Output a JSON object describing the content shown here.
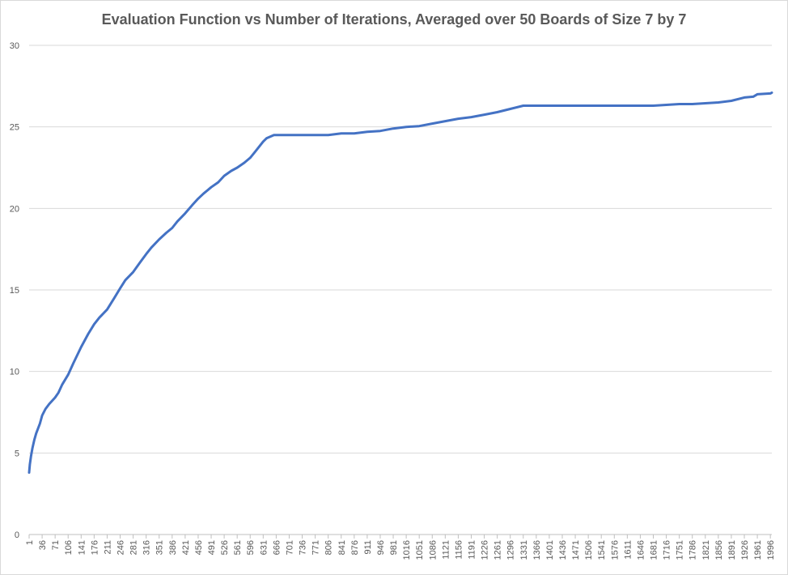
{
  "chart_data": {
    "type": "line",
    "title": "Evaluation Function vs Number of Iterations, Averaged over 50 Boards of Size 7 by 7",
    "xlabel": "",
    "ylabel": "",
    "ylim": [
      0,
      30
    ],
    "yticks": [
      0,
      5,
      10,
      15,
      20,
      25,
      30
    ],
    "xlim": [
      1,
      2000
    ],
    "xticks": [
      1,
      36,
      71,
      106,
      141,
      176,
      211,
      246,
      281,
      316,
      351,
      386,
      421,
      456,
      491,
      526,
      561,
      596,
      631,
      666,
      701,
      736,
      771,
      806,
      841,
      876,
      911,
      946,
      981,
      1016,
      1051,
      1086,
      1121,
      1156,
      1191,
      1226,
      1261,
      1296,
      1331,
      1366,
      1401,
      1436,
      1471,
      1506,
      1541,
      1576,
      1611,
      1646,
      1681,
      1716,
      1751,
      1786,
      1821,
      1856,
      1891,
      1926,
      1961,
      1996
    ],
    "grid": true,
    "legend": "none",
    "color": "#4472C4",
    "series": [
      {
        "x": [
          1,
          3,
          6,
          10,
          15,
          20,
          25,
          30,
          36,
          45,
          55,
          71,
          80,
          90,
          106,
          120,
          141,
          160,
          176,
          190,
          211,
          230,
          246,
          260,
          281,
          300,
          316,
          330,
          351,
          370,
          386,
          400,
          421,
          440,
          456,
          470,
          491,
          510,
          526,
          545,
          561,
          580,
          596,
          610,
          631,
          640,
          650,
          660,
          666,
          701,
          736,
          771,
          806,
          841,
          876,
          911,
          946,
          981,
          1016,
          1051,
          1086,
          1121,
          1156,
          1191,
          1226,
          1261,
          1296,
          1331,
          1366,
          1401,
          1436,
          1471,
          1506,
          1541,
          1576,
          1611,
          1646,
          1681,
          1716,
          1751,
          1786,
          1821,
          1856,
          1891,
          1926,
          1950,
          1961,
          1996,
          2000
        ],
        "y": [
          3.8,
          4.3,
          4.8,
          5.3,
          5.8,
          6.2,
          6.5,
          6.8,
          7.3,
          7.7,
          8.0,
          8.4,
          8.7,
          9.2,
          9.8,
          10.5,
          11.5,
          12.3,
          12.9,
          13.3,
          13.8,
          14.5,
          15.1,
          15.6,
          16.1,
          16.7,
          17.2,
          17.6,
          18.1,
          18.5,
          18.8,
          19.2,
          19.7,
          20.2,
          20.6,
          20.9,
          21.3,
          21.6,
          22.0,
          22.3,
          22.5,
          22.8,
          23.1,
          23.5,
          24.1,
          24.3,
          24.4,
          24.5,
          24.5,
          24.5,
          24.5,
          24.5,
          24.5,
          24.6,
          24.6,
          24.7,
          24.75,
          24.9,
          25.0,
          25.05,
          25.2,
          25.35,
          25.5,
          25.6,
          25.75,
          25.9,
          26.1,
          26.3,
          26.3,
          26.3,
          26.3,
          26.3,
          26.3,
          26.3,
          26.3,
          26.3,
          26.3,
          26.3,
          26.35,
          26.4,
          26.4,
          26.45,
          26.5,
          26.6,
          26.8,
          26.85,
          27.0,
          27.05,
          27.1
        ]
      }
    ]
  }
}
